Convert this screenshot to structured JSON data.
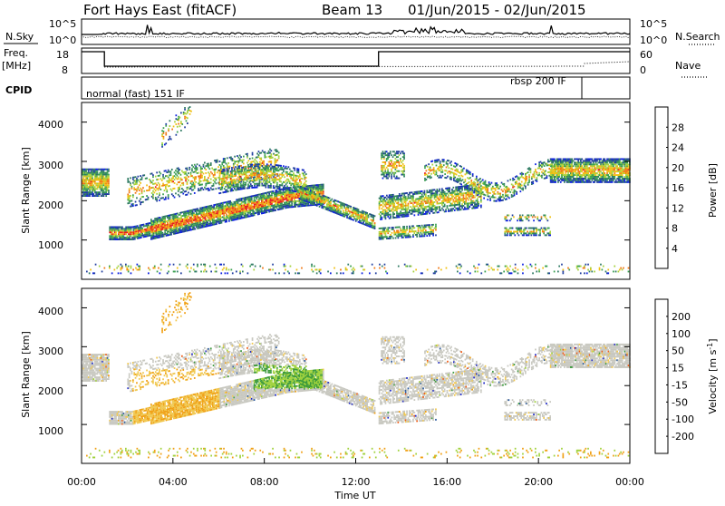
{
  "header": {
    "station": "Fort Hays East (fitACF)",
    "beam": "Beam 13",
    "dates": "01/Jun/2015 - 02/Jun/2015"
  },
  "aux_panels": {
    "nsky_label": "N.Sky",
    "nsky_ticks": [
      "10^5",
      "10^0"
    ],
    "nsearch_label": "N.Search",
    "nsearch_ticks": [
      "10^5",
      "10^0"
    ],
    "freq_label": "Freq.",
    "freq_unit": "[MHz]",
    "freq_ticks": [
      "18",
      "8"
    ],
    "nave_label": "Nave",
    "nave_ticks": [
      "60",
      "0"
    ],
    "cpid_label": "CPID",
    "cpid_modes": [
      "normal (fast) 151 IF",
      "rbsp 200 IF"
    ]
  },
  "colors": {
    "power": [
      "#0a1fe0",
      "#1e3c9e",
      "#2e7a62",
      "#3aa050",
      "#a6d23c",
      "#f0c014",
      "#f07814",
      "#e81e1e"
    ],
    "velocity": [
      "#e81e1e",
      "#f05a14",
      "#f0a014",
      "#f0c850",
      "#c8c8c0",
      "#a0d23c",
      "#3c9a3c",
      "#2a5aa0",
      "#1e28c8"
    ]
  },
  "chart_data": [
    {
      "type": "heatmap",
      "title": "Power",
      "ylabel": "Slant Range [km]",
      "yticks": [
        "1000",
        "2000",
        "3000",
        "4000"
      ],
      "ylim": [
        0,
        4500
      ],
      "xlim_hours": [
        0,
        24
      ],
      "colorbar": {
        "label": "Power [dB]",
        "ticks": [
          "4",
          "8",
          "12",
          "16",
          "20",
          "24",
          "28"
        ],
        "range": [
          0,
          32
        ]
      }
    },
    {
      "type": "heatmap",
      "title": "Velocity",
      "ylabel": "Slant Range [km]",
      "yticks": [
        "1000",
        "2000",
        "3000",
        "4000"
      ],
      "ylim": [
        0,
        4500
      ],
      "xlabel": "Time UT",
      "xticks": [
        "00:00",
        "04:00",
        "08:00",
        "12:00",
        "16:00",
        "20:00",
        "00:00"
      ],
      "colorbar": {
        "label": "Velocity [m s^-1]",
        "ticks": [
          "200",
          "100",
          "50",
          "15",
          "-15",
          "-50",
          "-100",
          "-200"
        ]
      }
    }
  ]
}
